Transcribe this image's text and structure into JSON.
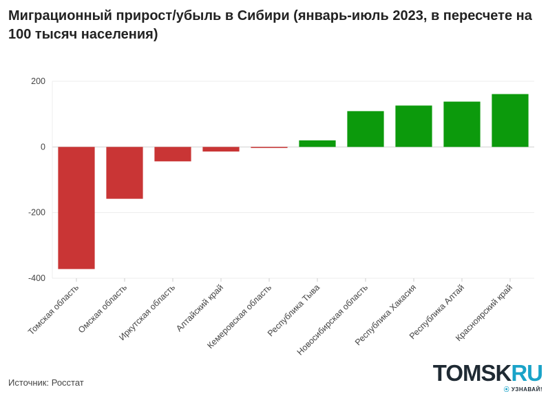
{
  "title": "Миграционный прирост/убыль в Сибири (январь-июль 2023, в пересчете на 100 тысяч населения)",
  "source": "Источник: Росстат",
  "logo": {
    "main": "TOMSK",
    "accent": "RU",
    "tag_mark": "⦿",
    "tag": "УЗНАВАЙ!"
  },
  "colors": {
    "negative": "#c93535",
    "positive": "#0c9a0c",
    "grid": "#ececec",
    "zero": "#d0d0d0"
  },
  "chart_data": {
    "type": "bar",
    "categories": [
      "Томская область",
      "Омская область",
      "Иркутская область",
      "Алтайский край",
      "Кемеровская область",
      "Республика Тыва",
      "Новосибирская область",
      "Республика Хакасия",
      "Республика Алтай",
      "Красноярский край"
    ],
    "values": [
      -372,
      -158,
      -44,
      -14,
      -2,
      20,
      109,
      126,
      138,
      161
    ],
    "ylim": [
      -400,
      200
    ],
    "yticks": [
      200,
      0,
      -200,
      -400
    ],
    "grid": true,
    "legend": "none"
  }
}
